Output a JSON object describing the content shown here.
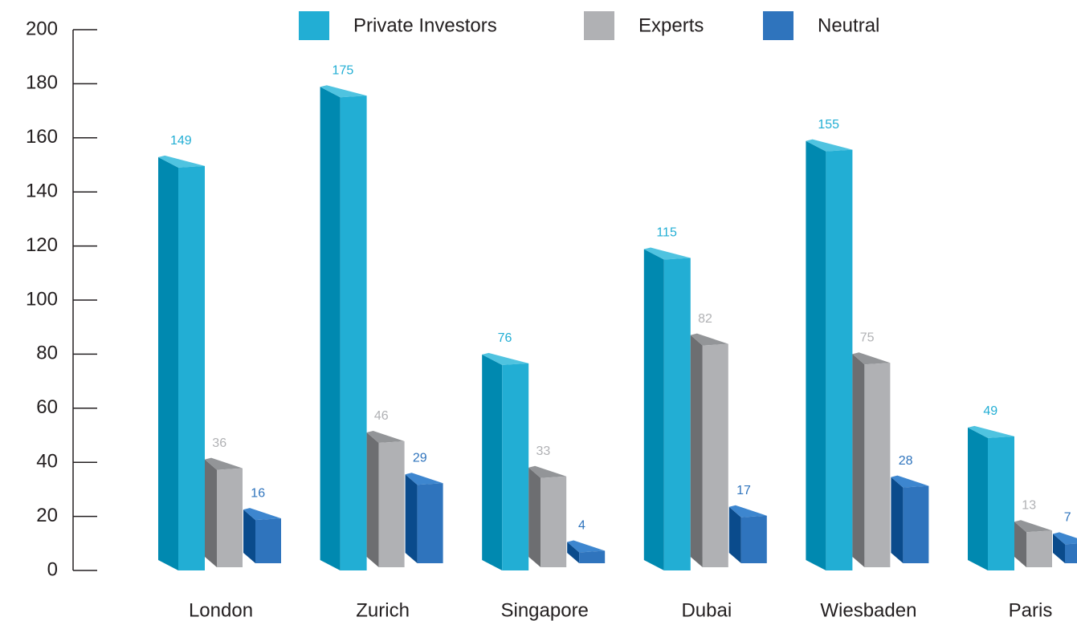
{
  "chart_data": {
    "type": "bar3d",
    "categories": [
      "London",
      "Zurich",
      "Singapore",
      "Dubai",
      "Wiesbaden",
      "Paris"
    ],
    "series": [
      {
        "name": "Private Investors",
        "color": "#22aed4",
        "values": [
          149,
          175,
          76,
          115,
          155,
          49
        ]
      },
      {
        "name": "Experts",
        "color": "#b0b1b4",
        "values": [
          36,
          46,
          33,
          82,
          75,
          13
        ]
      },
      {
        "name": "Neutral",
        "color": "#2f74bd",
        "values": [
          16,
          29,
          4,
          17,
          28,
          7
        ]
      }
    ],
    "ylim": [
      0,
      200
    ],
    "yticks": [
      0,
      20,
      40,
      60,
      80,
      100,
      120,
      140,
      160,
      180,
      200
    ],
    "legend": "top"
  }
}
